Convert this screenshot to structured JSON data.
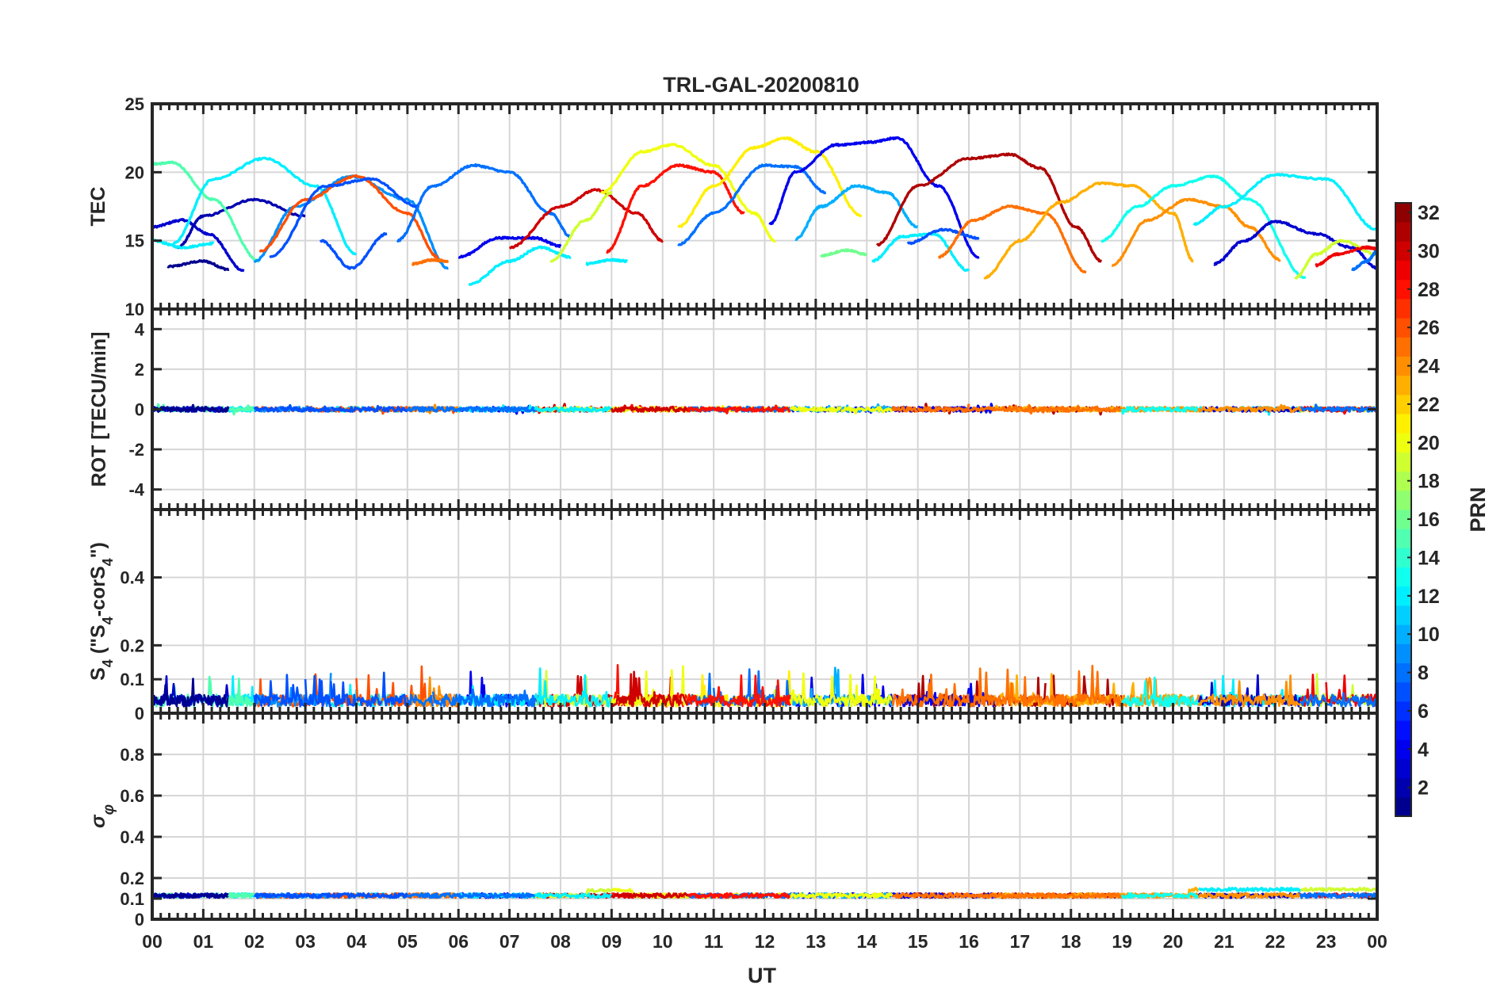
{
  "figure": {
    "title": "TRL-GAL-20200810",
    "xlabel": "UT"
  },
  "chart_data": {
    "type": "line",
    "title": "TRL-GAL-20200810",
    "xlabel": "UT",
    "x_ticks": [
      "00",
      "01",
      "02",
      "03",
      "04",
      "05",
      "06",
      "07",
      "08",
      "09",
      "10",
      "11",
      "12",
      "13",
      "14",
      "15",
      "16",
      "17",
      "18",
      "19",
      "20",
      "21",
      "22",
      "23",
      "00"
    ],
    "xlim": [
      0,
      24
    ],
    "grid": true,
    "colormap": "jet",
    "colorbar": {
      "label": "PRN",
      "range": [
        1,
        32
      ],
      "ticks": [
        2,
        4,
        6,
        8,
        10,
        12,
        14,
        16,
        18,
        20,
        22,
        24,
        26,
        28,
        30,
        32
      ]
    },
    "panels": [
      {
        "id": "tec",
        "ylabel": "TEC",
        "ylim": [
          10,
          25
        ],
        "y_ticks": [
          10,
          15,
          20,
          25
        ],
        "arcs": [
          {
            "prn": 1,
            "x": [
              0.3,
              1.0,
              1.5
            ],
            "y": [
              13.1,
              13.5,
              12.9
            ]
          },
          {
            "prn": 3,
            "x": [
              0.0,
              0.6,
              1.1,
              1.8
            ],
            "y": [
              16.0,
              16.5,
              15.5,
              12.8
            ]
          },
          {
            "prn": 2,
            "x": [
              0.5,
              1.0,
              2.0,
              3.0
            ],
            "y": [
              14.5,
              16.8,
              18.0,
              16.8
            ]
          },
          {
            "prn": 12,
            "x": [
              0.0,
              0.6,
              1.2
            ],
            "y": [
              15.0,
              14.5,
              14.8
            ]
          },
          {
            "prn": 15,
            "x": [
              0.0,
              0.4,
              1.2,
              2.1
            ],
            "y": [
              20.6,
              20.7,
              18.0,
              13.5
            ]
          },
          {
            "prn": 12,
            "x": [
              0.4,
              1.2,
              2.2,
              3.2,
              4.0
            ],
            "y": [
              14.8,
              19.5,
              21.0,
              19.0,
              14.0
            ]
          },
          {
            "prn": 9,
            "x": [
              2.0,
              2.8,
              3.9,
              5.0,
              5.8
            ],
            "y": [
              13.5,
              17.5,
              19.7,
              18.0,
              13.0
            ]
          },
          {
            "prn": 26,
            "x": [
              2.1,
              3.0,
              4.0,
              5.0,
              5.6
            ],
            "y": [
              14.2,
              18.0,
              19.7,
              17.0,
              13.8
            ]
          },
          {
            "prn": 7,
            "x": [
              2.3,
              3.4,
              4.3,
              5.2
            ],
            "y": [
              13.8,
              19.0,
              19.5,
              17.5
            ]
          },
          {
            "prn": 7,
            "x": [
              3.3,
              3.9,
              4.6
            ],
            "y": [
              15.0,
              13.0,
              15.5
            ]
          },
          {
            "prn": 25,
            "x": [
              5.1,
              5.5,
              5.8
            ],
            "y": [
              13.3,
              13.6,
              13.5
            ]
          },
          {
            "prn": 8,
            "x": [
              4.8,
              5.5,
              6.3,
              7.0,
              7.8,
              8.2
            ],
            "y": [
              15.0,
              19.0,
              20.5,
              20.0,
              17.0,
              15.3
            ]
          },
          {
            "prn": 4,
            "x": [
              6.0,
              6.8,
              7.5,
              8.0
            ],
            "y": [
              13.8,
              15.2,
              15.2,
              14.6
            ]
          },
          {
            "prn": 12,
            "x": [
              6.2,
              7.0,
              7.6,
              8.2
            ],
            "y": [
              11.8,
              13.5,
              14.5,
              13.8
            ]
          },
          {
            "prn": 30,
            "x": [
              7.0,
              8.0,
              8.7,
              9.5,
              10.0
            ],
            "y": [
              14.5,
              17.5,
              18.7,
              17.0,
              15.0
            ]
          },
          {
            "prn": 19,
            "x": [
              7.8,
              8.5,
              9.0
            ],
            "y": [
              13.5,
              16.5,
              18.5
            ]
          },
          {
            "prn": 12,
            "x": [
              8.5,
              9.0,
              9.3
            ],
            "y": [
              13.3,
              13.6,
              13.5
            ]
          },
          {
            "prn": 20,
            "x": [
              8.8,
              9.6,
              10.2,
              11.0,
              11.8,
              12.2
            ],
            "y": [
              18.5,
              21.5,
              22.0,
              20.5,
              17.0,
              15.0
            ]
          },
          {
            "prn": 28,
            "x": [
              8.9,
              9.6,
              10.3,
              11.0,
              11.6
            ],
            "y": [
              14.2,
              19.0,
              20.5,
              20.0,
              17.0
            ]
          },
          {
            "prn": 8,
            "x": [
              10.3,
              11.0,
              12.0,
              12.6,
              13.2
            ],
            "y": [
              14.7,
              17.0,
              20.5,
              20.4,
              18.5
            ]
          },
          {
            "prn": 21,
            "x": [
              10.3,
              11.0,
              11.8,
              12.4,
              13.0,
              13.9
            ],
            "y": [
              16.0,
              19.0,
              21.8,
              22.5,
              21.5,
              16.8
            ]
          },
          {
            "prn": 4,
            "x": [
              12.1,
              12.6,
              13.4,
              14.1,
              14.6,
              15.4,
              16.2
            ],
            "y": [
              16.2,
              20.0,
              22.0,
              22.2,
              22.5,
              19.0,
              13.8
            ]
          },
          {
            "prn": 10,
            "x": [
              12.6,
              13.1,
              13.8,
              14.4,
              15.0
            ],
            "y": [
              15.1,
              17.5,
              19.0,
              18.5,
              16.0
            ]
          },
          {
            "prn": 16,
            "x": [
              13.1,
              13.6,
              14.0
            ],
            "y": [
              13.9,
              14.3,
              14.0
            ]
          },
          {
            "prn": 12,
            "x": [
              14.1,
              14.7,
              15.3,
              16.0
            ],
            "y": [
              13.5,
              15.3,
              15.5,
              12.8
            ]
          },
          {
            "prn": 7,
            "x": [
              14.8,
              15.5,
              16.2
            ],
            "y": [
              14.8,
              15.8,
              15.2
            ]
          },
          {
            "prn": 31,
            "x": [
              14.2,
              15.0,
              16.0,
              16.8,
              17.4,
              18.1,
              18.6
            ],
            "y": [
              14.7,
              19.0,
              21.0,
              21.3,
              20.3,
              16.0,
              13.5
            ]
          },
          {
            "prn": 25,
            "x": [
              15.4,
              16.1,
              16.8,
              17.5,
              18.3
            ],
            "y": [
              13.8,
              16.5,
              17.5,
              17.0,
              12.7
            ]
          },
          {
            "prn": 23,
            "x": [
              16.3,
              17.0,
              17.8,
              18.6,
              19.2,
              20.0,
              20.4
            ],
            "y": [
              12.3,
              15.0,
              17.8,
              19.2,
              19.0,
              17.0,
              13.5
            ]
          },
          {
            "prn": 13,
            "x": [
              18.6,
              19.3,
              20.0,
              20.8,
              21.5,
              22.6
            ],
            "y": [
              15.0,
              17.5,
              19.0,
              19.7,
              18.0,
              12.3
            ]
          },
          {
            "prn": 24,
            "x": [
              18.8,
              19.5,
              20.3,
              21.0,
              21.5,
              22.1
            ],
            "y": [
              13.2,
              16.5,
              18.0,
              17.5,
              16.0,
              13.6
            ]
          },
          {
            "prn": 12,
            "x": [
              20.4,
              21.0,
              22.0,
              23.0,
              24.0
            ],
            "y": [
              16.2,
              17.5,
              19.8,
              19.5,
              15.8
            ]
          },
          {
            "prn": 3,
            "x": [
              20.8,
              21.4,
              22.0,
              22.8,
              23.5,
              24.0
            ],
            "y": [
              13.3,
              15.0,
              16.4,
              15.5,
              14.5,
              13.0
            ]
          },
          {
            "prn": 19,
            "x": [
              22.4,
              22.8,
              23.3,
              24.0
            ],
            "y": [
              12.3,
              14.0,
              15.0,
              14.0
            ]
          },
          {
            "prn": 29,
            "x": [
              22.8,
              23.2,
              23.8,
              24.0
            ],
            "y": [
              13.2,
              14.0,
              14.5,
              14.4
            ]
          },
          {
            "prn": 8,
            "x": [
              23.5,
              23.8,
              24.0
            ],
            "y": [
              12.9,
              13.5,
              14.2
            ]
          }
        ]
      },
      {
        "id": "rot",
        "ylabel": "ROT [TECU/min]",
        "ylim": [
          -5,
          5
        ],
        "y_ticks": [
          -4,
          -2,
          0,
          2,
          4
        ]
      },
      {
        "id": "s4",
        "ylabel": "S4 (\"S4-corS4\")",
        "ylim": [
          0,
          0.6
        ],
        "y_ticks": [
          0,
          0.1,
          0.2,
          0.4
        ]
      },
      {
        "id": "sigma",
        "ylabel": "σφ",
        "ylim": [
          0,
          1
        ],
        "y_ticks": [
          0,
          0.1,
          0.2,
          0.4,
          0.6,
          0.8
        ]
      }
    ]
  }
}
